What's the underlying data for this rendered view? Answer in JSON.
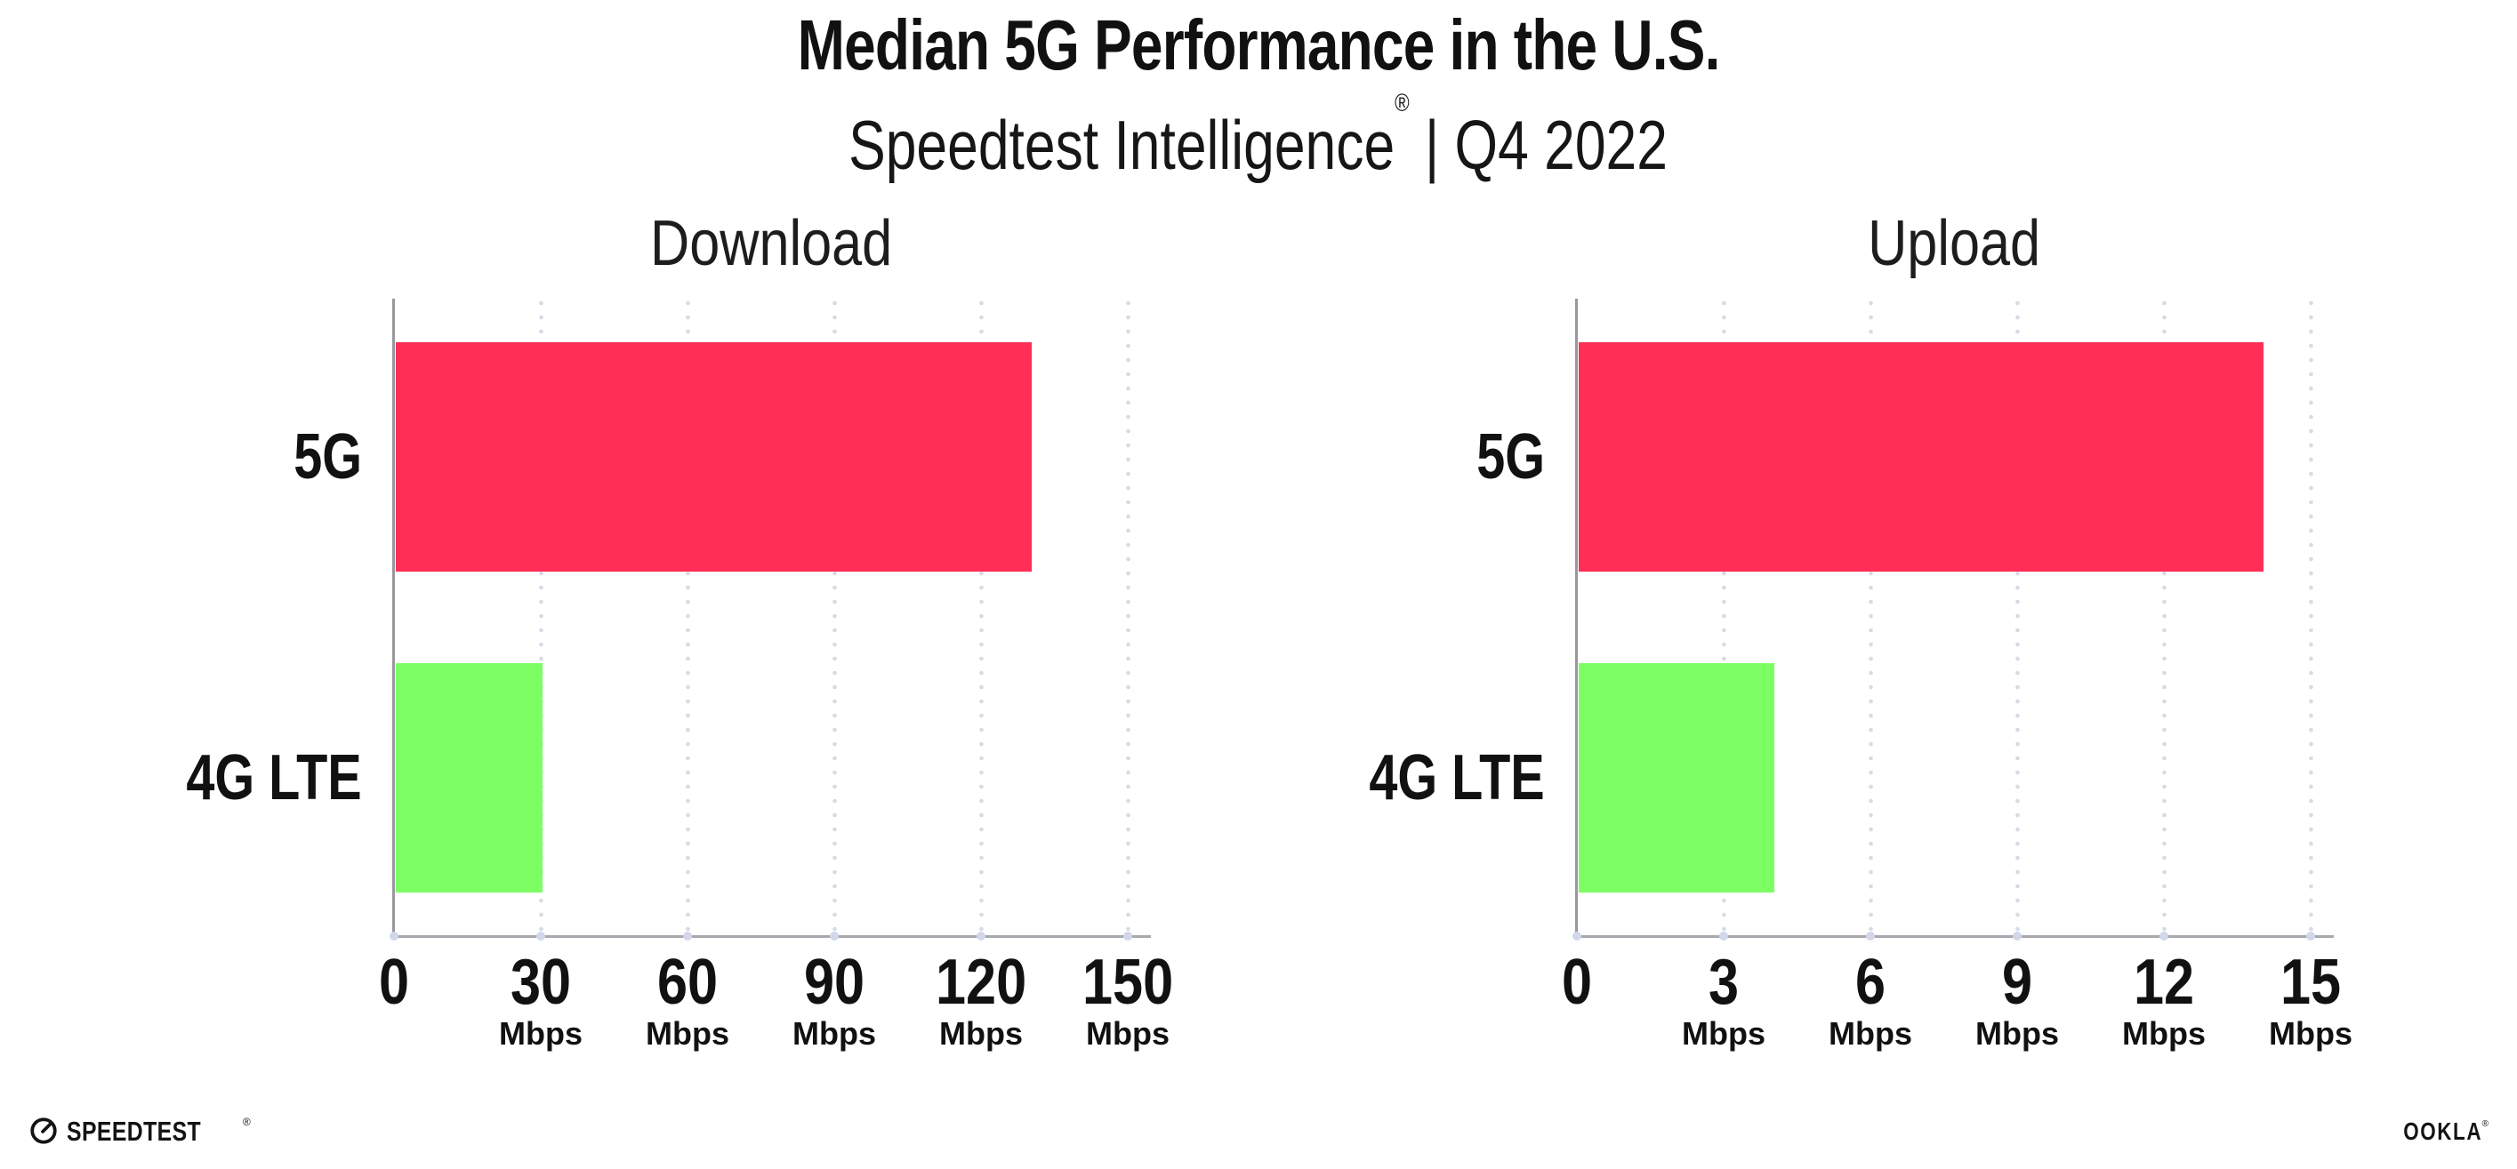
{
  "header": {
    "title": "Median 5G Performance in the U.S.",
    "subtitle_brand": "Speedtest Intelligence",
    "subtitle_reg": "®",
    "subtitle_rest": " | Q4 2022"
  },
  "chart_data": [
    {
      "type": "bar",
      "orientation": "horizontal",
      "title": "Download",
      "categories": [
        "5G",
        "4G LTE"
      ],
      "values": [
        130,
        30
      ],
      "unit": "Mbps",
      "xlim": [
        0,
        150
      ],
      "xticks": [
        0,
        30,
        60,
        90,
        120,
        150
      ],
      "series_colors": [
        "#ff2e56",
        "#7dff64"
      ],
      "grid": "dotted-vertical"
    },
    {
      "type": "bar",
      "orientation": "horizontal",
      "title": "Upload",
      "categories": [
        "5G",
        "4G LTE"
      ],
      "values": [
        14,
        4
      ],
      "unit": "Mbps",
      "xlim": [
        0,
        15
      ],
      "xticks": [
        0,
        3,
        6,
        9,
        12,
        15
      ],
      "series_colors": [
        "#ff2e56",
        "#7dff64"
      ],
      "grid": "dotted-vertical"
    }
  ],
  "footer": {
    "speedtest_label": "SPEEDTEST",
    "speedtest_reg": "®",
    "ookla_label": "OOKLA",
    "ookla_reg": "®"
  },
  "colors": {
    "bar_5g": "#ff2e56",
    "bar_4g_lte": "#7dff64",
    "axis_line": "#9a9aa0",
    "grid_dot": "#d9d9e6",
    "axis_tick_dot": "#d2d7ea",
    "text": "#111111"
  }
}
